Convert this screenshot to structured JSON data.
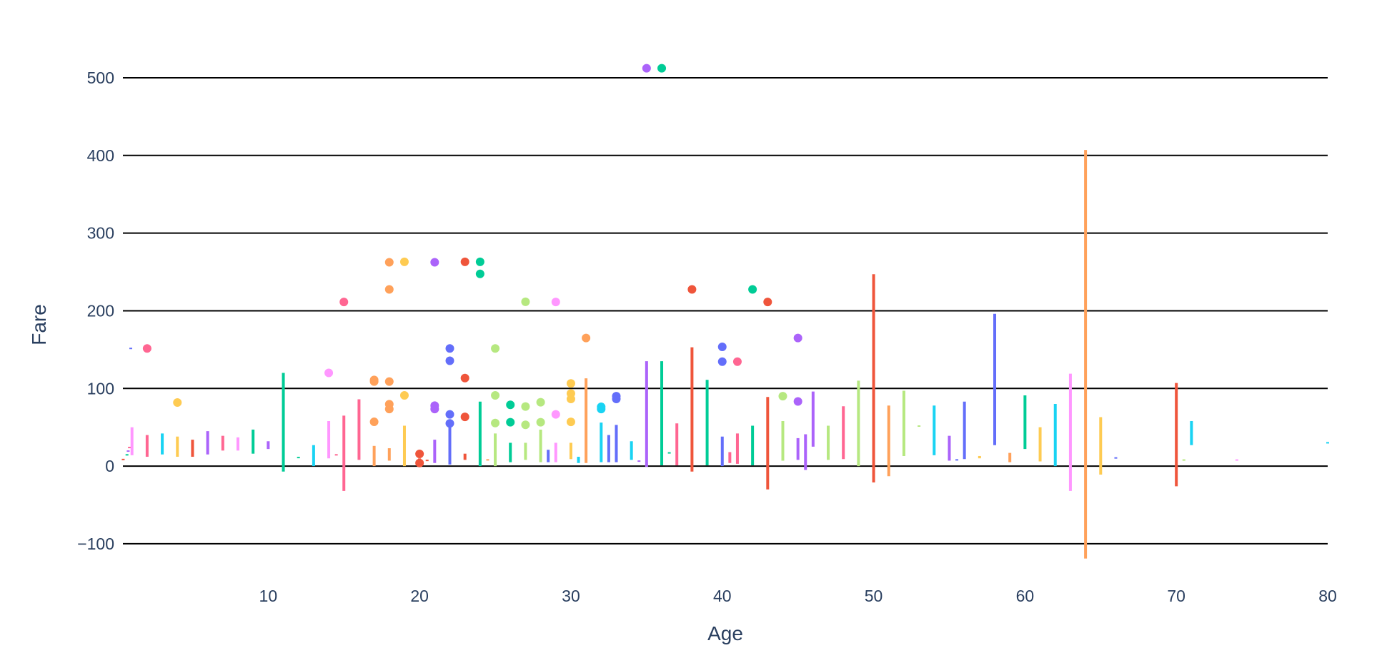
{
  "chart_data": {
    "type": "scatter",
    "title": "",
    "xlabel": "Age",
    "ylabel": "Fare",
    "xlim": [
      0.4,
      80
    ],
    "ylim": [
      -135,
      545
    ],
    "x_ticks": [
      10,
      20,
      30,
      40,
      50,
      60,
      70,
      80
    ],
    "y_ticks": [
      -100,
      0,
      100,
      200,
      300,
      400,
      500
    ],
    "grid": "horizontal",
    "legend": "none",
    "palette": [
      "#636efa",
      "#ef553b",
      "#00cc96",
      "#ab63fa",
      "#ffa15a",
      "#19d3f3",
      "#ff6692",
      "#b6e880",
      "#ff97ff",
      "#fecb52"
    ],
    "error_bars": [
      {
        "x": 0.42,
        "y": 8.5,
        "low": 8.5,
        "high": 8.5,
        "color": "#ef553b"
      },
      {
        "x": 0.67,
        "y": 14.5,
        "low": 14.5,
        "high": 14.5,
        "color": "#00cc96"
      },
      {
        "x": 0.75,
        "y": 19.3,
        "low": 19.3,
        "high": 19.3,
        "color": "#ab63fa"
      },
      {
        "x": 0.83,
        "y": 23.9,
        "low": 23.9,
        "high": 23.9,
        "color": "#ff6692"
      },
      {
        "x": 0.92,
        "y": 151.5,
        "low": 151.5,
        "high": 151.5,
        "color": "#636efa"
      },
      {
        "x": 1,
        "y": 33,
        "low": 14,
        "high": 50,
        "color": "#ff97ff"
      },
      {
        "x": 2,
        "y": 27,
        "low": 12,
        "high": 40,
        "color": "#ff6692"
      },
      {
        "x": 3,
        "y": 28,
        "low": 15,
        "high": 42,
        "color": "#19d3f3"
      },
      {
        "x": 4,
        "y": 26,
        "low": 12,
        "high": 38,
        "color": "#fecb52"
      },
      {
        "x": 5,
        "y": 23,
        "low": 12,
        "high": 34,
        "color": "#ef553b"
      },
      {
        "x": 6,
        "y": 30,
        "low": 15,
        "high": 45,
        "color": "#ab63fa"
      },
      {
        "x": 7,
        "y": 29,
        "low": 20,
        "high": 39,
        "color": "#ff6692"
      },
      {
        "x": 8,
        "y": 28,
        "low": 20,
        "high": 37,
        "color": "#ff97ff"
      },
      {
        "x": 9,
        "y": 33,
        "low": 16,
        "high": 47,
        "color": "#00cc96"
      },
      {
        "x": 10,
        "y": 27,
        "low": 22,
        "high": 32,
        "color": "#ab63fa"
      },
      {
        "x": 11,
        "y": 55,
        "low": -7,
        "high": 120,
        "color": "#00cc96"
      },
      {
        "x": 12,
        "y": 11,
        "low": 11,
        "high": 11,
        "color": "#00cc96"
      },
      {
        "x": 13,
        "y": 14,
        "low": 0,
        "high": 27,
        "color": "#19d3f3"
      },
      {
        "x": 14,
        "y": 35,
        "low": 10,
        "high": 58,
        "color": "#ff97ff"
      },
      {
        "x": 14.5,
        "y": 14.5,
        "low": 14.5,
        "high": 14.5,
        "color": "#ff6692"
      },
      {
        "x": 15,
        "y": 18,
        "low": -32,
        "high": 65,
        "color": "#ff6692"
      },
      {
        "x": 16,
        "y": 47,
        "low": 8,
        "high": 86,
        "color": "#ff6692"
      },
      {
        "x": 17,
        "y": 15,
        "low": 0,
        "high": 26,
        "color": "#ffa15a"
      },
      {
        "x": 18,
        "y": 15,
        "low": 7,
        "high": 23,
        "color": "#ffa15a"
      },
      {
        "x": 19,
        "y": 27,
        "low": 0,
        "high": 52,
        "color": "#fecb52"
      },
      {
        "x": 20,
        "y": 9,
        "low": 9,
        "high": 9,
        "color": "#ef553b"
      },
      {
        "x": 20.5,
        "y": 7.3,
        "low": 7.3,
        "high": 7.3,
        "color": "#ef553b"
      },
      {
        "x": 21,
        "y": 19,
        "low": 4,
        "high": 34,
        "color": "#ab63fa"
      },
      {
        "x": 22,
        "y": 27,
        "low": 2,
        "high": 52,
        "color": "#636efa"
      },
      {
        "x": 23,
        "y": 12,
        "low": 8,
        "high": 16,
        "color": "#ef553b"
      },
      {
        "x": 24,
        "y": 42,
        "low": 0,
        "high": 83,
        "color": "#00cc96"
      },
      {
        "x": 24.5,
        "y": 8,
        "low": 8,
        "high": 8,
        "color": "#ffa15a"
      },
      {
        "x": 25,
        "y": 22,
        "low": 0,
        "high": 42,
        "color": "#b6e880"
      },
      {
        "x": 26,
        "y": 18,
        "low": 5,
        "high": 30,
        "color": "#00cc96"
      },
      {
        "x": 27,
        "y": 19,
        "low": 8,
        "high": 30,
        "color": "#b6e880"
      },
      {
        "x": 28,
        "y": 26,
        "low": 5,
        "high": 47,
        "color": "#b6e880"
      },
      {
        "x": 28.5,
        "y": 15,
        "low": 5,
        "high": 21,
        "color": "#636efa"
      },
      {
        "x": 29,
        "y": 18,
        "low": 5,
        "high": 30,
        "color": "#ff97ff"
      },
      {
        "x": 30,
        "y": 20,
        "low": 9,
        "high": 30,
        "color": "#fecb52"
      },
      {
        "x": 30.5,
        "y": 8,
        "low": 4,
        "high": 12,
        "color": "#19d3f3"
      },
      {
        "x": 31,
        "y": 58,
        "low": 4,
        "high": 113,
        "color": "#ffa15a"
      },
      {
        "x": 32,
        "y": 30,
        "low": 5,
        "high": 56,
        "color": "#19d3f3"
      },
      {
        "x": 32.5,
        "y": 22,
        "low": 5,
        "high": 40,
        "color": "#636efa"
      },
      {
        "x": 33,
        "y": 29,
        "low": 5,
        "high": 53,
        "color": "#636efa"
      },
      {
        "x": 34,
        "y": 20,
        "low": 8,
        "high": 32,
        "color": "#19d3f3"
      },
      {
        "x": 34.5,
        "y": 6.4,
        "low": 6.4,
        "high": 6.4,
        "color": "#ab63fa"
      },
      {
        "x": 35,
        "y": 67,
        "low": -1,
        "high": 135,
        "color": "#ab63fa"
      },
      {
        "x": 36,
        "y": 68,
        "low": 1,
        "high": 135,
        "color": "#00cc96"
      },
      {
        "x": 36.5,
        "y": 17,
        "low": 17,
        "high": 17,
        "color": "#00cc96"
      },
      {
        "x": 37,
        "y": 28,
        "low": 1,
        "high": 55,
        "color": "#ff6692"
      },
      {
        "x": 38,
        "y": 73,
        "low": -7,
        "high": 153,
        "color": "#ef553b"
      },
      {
        "x": 39,
        "y": 56,
        "low": 1,
        "high": 111,
        "color": "#00cc96"
      },
      {
        "x": 40,
        "y": 19,
        "low": 0,
        "high": 38,
        "color": "#636efa"
      },
      {
        "x": 40.5,
        "y": 11,
        "low": 4,
        "high": 18,
        "color": "#ff6692"
      },
      {
        "x": 41,
        "y": 22,
        "low": 3,
        "high": 42,
        "color": "#ff6692"
      },
      {
        "x": 42,
        "y": 27,
        "low": 1,
        "high": 52,
        "color": "#00cc96"
      },
      {
        "x": 43,
        "y": 29,
        "low": -30,
        "high": 89,
        "color": "#ef553b"
      },
      {
        "x": 44,
        "y": 32,
        "low": 7,
        "high": 58,
        "color": "#b6e880"
      },
      {
        "x": 45,
        "y": 22,
        "low": 8,
        "high": 36,
        "color": "#ab63fa"
      },
      {
        "x": 45.5,
        "y": 17,
        "low": -5,
        "high": 41,
        "color": "#ab63fa"
      },
      {
        "x": 46,
        "y": 61,
        "low": 25,
        "high": 96,
        "color": "#ab63fa"
      },
      {
        "x": 47,
        "y": 30,
        "low": 8,
        "high": 52,
        "color": "#b6e880"
      },
      {
        "x": 48,
        "y": 43,
        "low": 9,
        "high": 77,
        "color": "#ff6692"
      },
      {
        "x": 49,
        "y": 55,
        "low": 0,
        "high": 110,
        "color": "#b6e880"
      },
      {
        "x": 50,
        "y": 113,
        "low": -21,
        "high": 247,
        "color": "#ef553b"
      },
      {
        "x": 51,
        "y": 32,
        "low": -13,
        "high": 78,
        "color": "#ffa15a"
      },
      {
        "x": 52,
        "y": 55,
        "low": 13,
        "high": 97,
        "color": "#b6e880"
      },
      {
        "x": 53,
        "y": 51.5,
        "low": 51.5,
        "high": 51.5,
        "color": "#b6e880"
      },
      {
        "x": 54,
        "y": 46,
        "low": 14,
        "high": 78,
        "color": "#19d3f3"
      },
      {
        "x": 55,
        "y": 23,
        "low": 7,
        "high": 39,
        "color": "#ab63fa"
      },
      {
        "x": 55.5,
        "y": 8,
        "low": 8,
        "high": 8,
        "color": "#636efa"
      },
      {
        "x": 56,
        "y": 46,
        "low": 9,
        "high": 83,
        "color": "#636efa"
      },
      {
        "x": 57,
        "y": 11,
        "low": 10,
        "high": 13,
        "color": "#fecb52"
      },
      {
        "x": 58,
        "y": 112,
        "low": 27,
        "high": 196,
        "color": "#636efa"
      },
      {
        "x": 59,
        "y": 11,
        "low": 5,
        "high": 17,
        "color": "#ffa15a"
      },
      {
        "x": 60,
        "y": 57,
        "low": 22,
        "high": 91,
        "color": "#00cc96"
      },
      {
        "x": 61,
        "y": 28,
        "low": 6,
        "high": 50,
        "color": "#fecb52"
      },
      {
        "x": 62,
        "y": 39,
        "low": 0,
        "high": 80,
        "color": "#19d3f3"
      },
      {
        "x": 63,
        "y": 44,
        "low": -32,
        "high": 119,
        "color": "#ff97ff"
      },
      {
        "x": 64,
        "y": 144,
        "low": -119,
        "high": 407,
        "color": "#ffa15a"
      },
      {
        "x": 65,
        "y": 26,
        "low": -11,
        "high": 63,
        "color": "#fecb52"
      },
      {
        "x": 66,
        "y": 10.5,
        "low": 10.5,
        "high": 10.5,
        "color": "#636efa"
      },
      {
        "x": 70,
        "y": 40,
        "low": -26,
        "high": 107,
        "color": "#ef553b"
      },
      {
        "x": 70.5,
        "y": 7.8,
        "low": 7.8,
        "high": 7.8,
        "color": "#b6e880"
      },
      {
        "x": 71,
        "y": 43,
        "low": 27,
        "high": 58,
        "color": "#19d3f3"
      },
      {
        "x": 74,
        "y": 7.8,
        "low": 7.8,
        "high": 7.8,
        "color": "#ff97ff"
      },
      {
        "x": 80,
        "y": 30,
        "low": 30,
        "high": 30,
        "color": "#19d3f3"
      }
    ],
    "points": [
      {
        "x": 2,
        "y": 151.5,
        "color": "#ff6692"
      },
      {
        "x": 4,
        "y": 81.9,
        "color": "#fecb52"
      },
      {
        "x": 14,
        "y": 120,
        "color": "#ff97ff"
      },
      {
        "x": 15,
        "y": 211.3,
        "color": "#ff6692"
      },
      {
        "x": 17,
        "y": 57,
        "color": "#ffa15a"
      },
      {
        "x": 17,
        "y": 110.9,
        "color": "#ffa15a"
      },
      {
        "x": 17,
        "y": 108.9,
        "color": "#ffa15a"
      },
      {
        "x": 18,
        "y": 262.4,
        "color": "#ffa15a"
      },
      {
        "x": 18,
        "y": 227.5,
        "color": "#ffa15a"
      },
      {
        "x": 18,
        "y": 108.9,
        "color": "#ffa15a"
      },
      {
        "x": 18,
        "y": 79.7,
        "color": "#ffa15a"
      },
      {
        "x": 18,
        "y": 73.5,
        "color": "#ffa15a"
      },
      {
        "x": 19,
        "y": 263,
        "color": "#fecb52"
      },
      {
        "x": 19,
        "y": 91.1,
        "color": "#fecb52"
      },
      {
        "x": 20,
        "y": 15.7,
        "color": "#ef553b"
      },
      {
        "x": 20,
        "y": 4,
        "color": "#ef553b"
      },
      {
        "x": 21,
        "y": 262.4,
        "color": "#ab63fa"
      },
      {
        "x": 21,
        "y": 77.9,
        "color": "#ab63fa"
      },
      {
        "x": 21,
        "y": 73.5,
        "color": "#ab63fa"
      },
      {
        "x": 22,
        "y": 151.5,
        "color": "#636efa"
      },
      {
        "x": 22,
        "y": 135.6,
        "color": "#636efa"
      },
      {
        "x": 22,
        "y": 66.6,
        "color": "#636efa"
      },
      {
        "x": 22,
        "y": 55,
        "color": "#636efa"
      },
      {
        "x": 23,
        "y": 263,
        "color": "#ef553b"
      },
      {
        "x": 23,
        "y": 113.3,
        "color": "#ef553b"
      },
      {
        "x": 23,
        "y": 63.4,
        "color": "#ef553b"
      },
      {
        "x": 24,
        "y": 263,
        "color": "#00cc96"
      },
      {
        "x": 24,
        "y": 247.5,
        "color": "#00cc96"
      },
      {
        "x": 25,
        "y": 151.5,
        "color": "#b6e880"
      },
      {
        "x": 25,
        "y": 91.1,
        "color": "#b6e880"
      },
      {
        "x": 25,
        "y": 55.4,
        "color": "#b6e880"
      },
      {
        "x": 26,
        "y": 78.9,
        "color": "#00cc96"
      },
      {
        "x": 26,
        "y": 56.5,
        "color": "#00cc96"
      },
      {
        "x": 27,
        "y": 211.5,
        "color": "#b6e880"
      },
      {
        "x": 27,
        "y": 76.7,
        "color": "#b6e880"
      },
      {
        "x": 27,
        "y": 53.1,
        "color": "#b6e880"
      },
      {
        "x": 28,
        "y": 82.2,
        "color": "#b6e880"
      },
      {
        "x": 28,
        "y": 56.5,
        "color": "#b6e880"
      },
      {
        "x": 29,
        "y": 211.3,
        "color": "#ff97ff"
      },
      {
        "x": 29,
        "y": 66.6,
        "color": "#ff97ff"
      },
      {
        "x": 30,
        "y": 106.4,
        "color": "#fecb52"
      },
      {
        "x": 30,
        "y": 93.5,
        "color": "#fecb52"
      },
      {
        "x": 30,
        "y": 86.5,
        "color": "#fecb52"
      },
      {
        "x": 30,
        "y": 56.9,
        "color": "#fecb52"
      },
      {
        "x": 31,
        "y": 164.9,
        "color": "#ffa15a"
      },
      {
        "x": 32,
        "y": 76.3,
        "color": "#19d3f3"
      },
      {
        "x": 32,
        "y": 73.5,
        "color": "#19d3f3"
      },
      {
        "x": 33,
        "y": 90,
        "color": "#636efa"
      },
      {
        "x": 33,
        "y": 86.5,
        "color": "#636efa"
      },
      {
        "x": 35,
        "y": 512.3,
        "color": "#ab63fa"
      },
      {
        "x": 36,
        "y": 512.3,
        "color": "#00cc96"
      },
      {
        "x": 38,
        "y": 227.5,
        "color": "#ef553b"
      },
      {
        "x": 40,
        "y": 153.5,
        "color": "#636efa"
      },
      {
        "x": 40,
        "y": 134.5,
        "color": "#636efa"
      },
      {
        "x": 41,
        "y": 134.5,
        "color": "#ff6692"
      },
      {
        "x": 42,
        "y": 227.5,
        "color": "#00cc96"
      },
      {
        "x": 43,
        "y": 211.3,
        "color": "#ef553b"
      },
      {
        "x": 44,
        "y": 90,
        "color": "#b6e880"
      },
      {
        "x": 45,
        "y": 164.9,
        "color": "#ab63fa"
      },
      {
        "x": 45,
        "y": 83.2,
        "color": "#ab63fa"
      }
    ]
  }
}
